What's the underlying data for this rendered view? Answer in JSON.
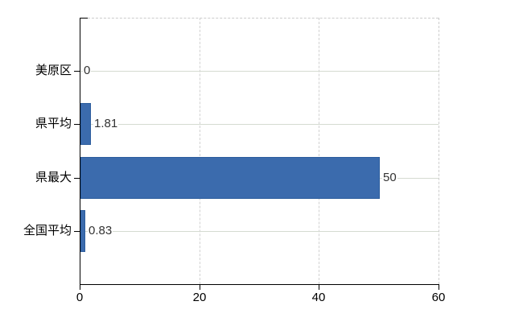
{
  "chart_data": {
    "type": "bar",
    "orientation": "horizontal",
    "title": "",
    "categories": [
      "美原区",
      "県平均",
      "県最大",
      "全国平均"
    ],
    "values": [
      0,
      1.81,
      50,
      0.83
    ],
    "value_labels": [
      "0",
      "1.81",
      "50",
      "0.83"
    ],
    "x_ticks": [
      0,
      20,
      40,
      60
    ],
    "x_tick_labels": [
      "0",
      "20",
      "40",
      "60"
    ],
    "xlim": [
      0,
      60
    ],
    "grid": true,
    "legend": false,
    "colors": {
      "bar_fill": "#3b6bad",
      "bar_border": "#2c5d9d",
      "axis": "#000000",
      "grid_horizontal": "#d5dbd1",
      "grid_vertical_dash": "#d1d1d1",
      "border_dash": "#cccccc",
      "value_text": "#333333",
      "axis_text": "#000000"
    }
  }
}
